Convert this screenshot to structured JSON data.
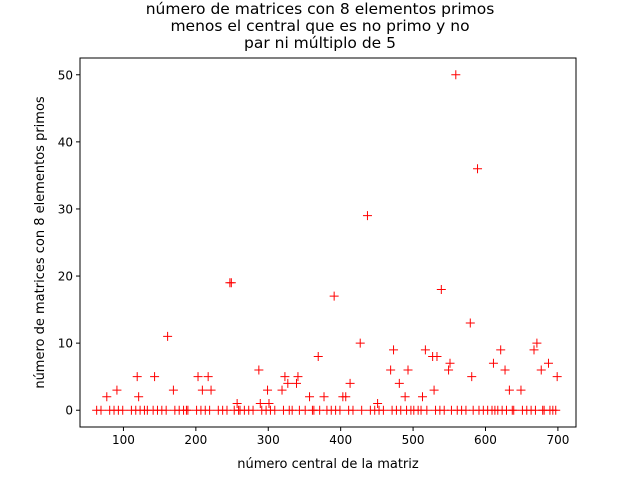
{
  "chart_data": {
    "type": "scatter",
    "title_lines": [
      "número de matrices con 8 elementos primos",
      "menos el central que es no primo y no",
      "par ni múltiplo de 5"
    ],
    "xlabel": "número central de la matriz",
    "ylabel": "número de matrices con 8 elementos primos",
    "xlim": [
      40,
      725
    ],
    "ylim": [
      -2.5,
      52.5
    ],
    "xticks": [
      100,
      200,
      300,
      400,
      500,
      600,
      700
    ],
    "yticks": [
      0,
      10,
      20,
      30,
      40,
      50
    ],
    "grid": false,
    "legend": "none",
    "marker": "+",
    "color": "#ff0000",
    "x": [
      63,
      69,
      77,
      81,
      87,
      91,
      93,
      99,
      111,
      117,
      119,
      121,
      123,
      129,
      133,
      141,
      143,
      147,
      153,
      159,
      161,
      169,
      171,
      177,
      183,
      187,
      189,
      201,
      203,
      207,
      209,
      213,
      217,
      219,
      221,
      231,
      237,
      243,
      247,
      249,
      253,
      257,
      259,
      261,
      267,
      273,
      279,
      287,
      289,
      291,
      297,
      299,
      301,
      303,
      309,
      319,
      321,
      323,
      327,
      329,
      333,
      339,
      341,
      343,
      351,
      357,
      361,
      363,
      369,
      371,
      377,
      381,
      387,
      391,
      393,
      399,
      403,
      407,
      411,
      413,
      417,
      427,
      429,
      437,
      441,
      447,
      451,
      453,
      459,
      469,
      471,
      473,
      477,
      481,
      483,
      489,
      491,
      493,
      497,
      501,
      507,
      511,
      513,
      517,
      519,
      527,
      529,
      531,
      533,
      537,
      539,
      543,
      549,
      551,
      553,
      559,
      561,
      567,
      573,
      579,
      581,
      583,
      589,
      591,
      597,
      603,
      609,
      611,
      613,
      617,
      621,
      623,
      627,
      629,
      633,
      637,
      639,
      649,
      651,
      657,
      663,
      667,
      669,
      671,
      677,
      679,
      681,
      687,
      689,
      693,
      697,
      699
    ],
    "y": [
      0,
      0,
      2,
      0,
      0,
      3,
      0,
      0,
      0,
      0,
      5,
      2,
      0,
      0,
      0,
      0,
      5,
      0,
      0,
      0,
      11,
      3,
      0,
      0,
      0,
      0,
      0,
      0,
      5,
      0,
      3,
      0,
      5,
      0,
      3,
      0,
      0,
      0,
      19,
      19,
      0,
      1,
      0,
      0,
      0,
      0,
      0,
      6,
      1,
      0,
      0,
      3,
      1,
      0,
      0,
      3,
      0,
      5,
      4,
      0,
      0,
      4,
      5,
      0,
      0,
      2,
      0,
      0,
      8,
      0,
      2,
      0,
      0,
      17,
      0,
      0,
      2,
      2,
      0,
      4,
      0,
      10,
      0,
      29,
      0,
      0,
      1,
      0,
      0,
      6,
      0,
      9,
      0,
      4,
      0,
      2,
      0,
      6,
      0,
      0,
      0,
      0,
      2,
      9,
      0,
      8,
      3,
      0,
      8,
      0,
      18,
      0,
      6,
      7,
      0,
      50,
      0,
      0,
      0,
      13,
      5,
      0,
      36,
      0,
      0,
      0,
      0,
      7,
      0,
      0,
      9,
      0,
      6,
      0,
      3,
      0,
      0,
      3,
      0,
      0,
      0,
      9,
      0,
      10,
      6,
      0,
      0,
      7,
      0,
      0,
      0,
      5
    ]
  }
}
